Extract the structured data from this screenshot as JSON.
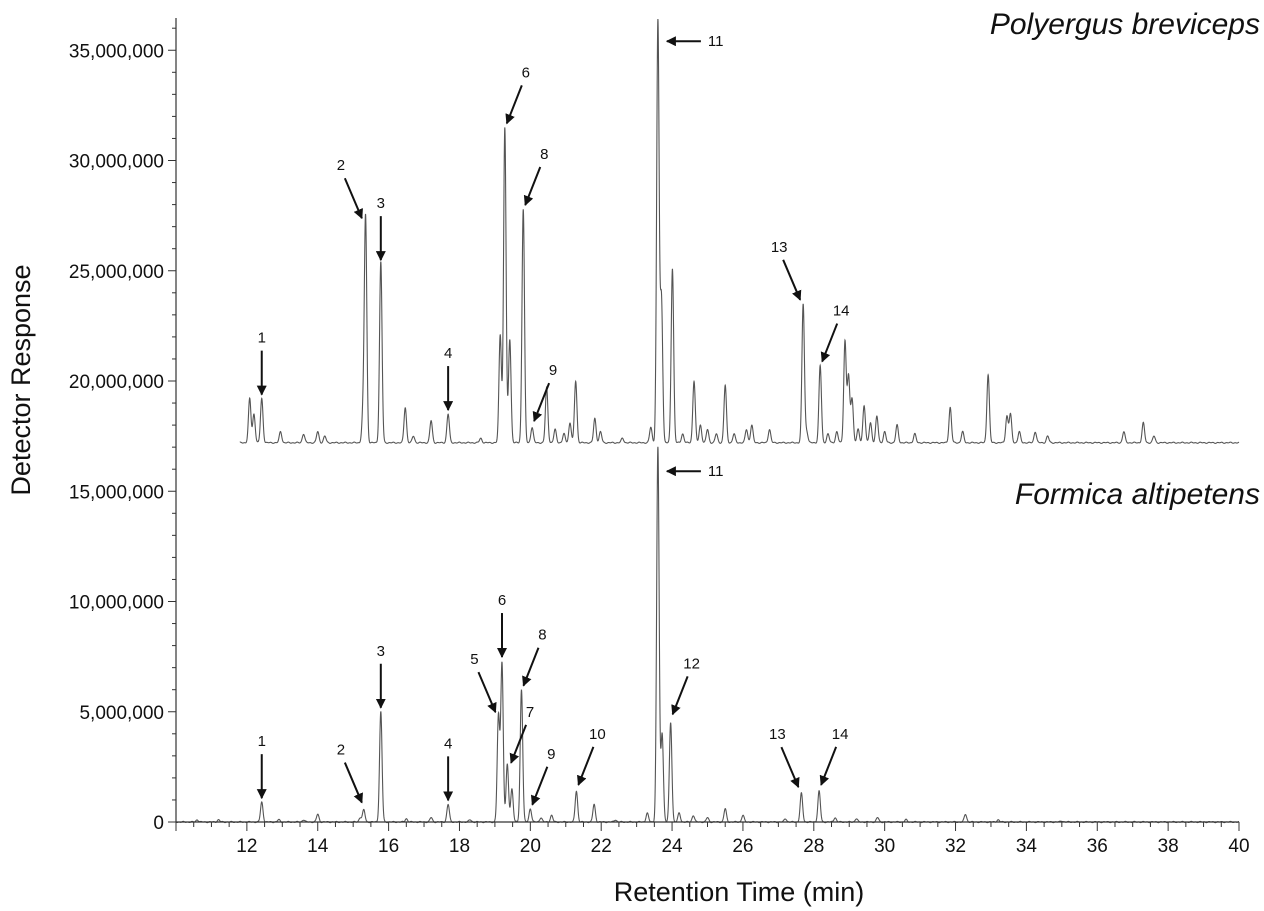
{
  "chart_data": {
    "type": "line",
    "xlabel": "Retention Time (min)",
    "ylabel": "Detector Response",
    "xlim": [
      10,
      40
    ],
    "ylim": [
      0,
      36500000
    ],
    "x_ticks": [
      "12",
      "14",
      "16",
      "18",
      "20",
      "22",
      "24",
      "26",
      "28",
      "30",
      "32",
      "34",
      "36",
      "38",
      "40"
    ],
    "y_ticks": [
      {
        "value": 0,
        "label": "0"
      },
      {
        "value": 5000000,
        "label": "5,000,000"
      },
      {
        "value": 10000000,
        "label": "10,000,000"
      },
      {
        "value": 15000000,
        "label": "15,000,000"
      },
      {
        "value": 20000000,
        "label": "20,000,000"
      },
      {
        "value": 25000000,
        "label": "25,000,000"
      },
      {
        "value": 30000000,
        "label": "30,000,000"
      },
      {
        "value": 35000000,
        "label": "35,000,000"
      }
    ],
    "series": [
      {
        "name": "Polyergus breviceps",
        "baseline": 17200000,
        "peaks": [
          [
            11.5,
            0.1
          ],
          [
            12.08,
            2.0
          ],
          [
            12.2,
            1.3
          ],
          [
            12.42,
            2.0
          ],
          [
            12.95,
            0.5
          ],
          [
            13.6,
            0.4
          ],
          [
            14.0,
            0.5
          ],
          [
            14.2,
            0.3
          ],
          [
            15.28,
            1.3
          ],
          [
            15.35,
            10.2
          ],
          [
            15.78,
            8.2
          ],
          [
            16.47,
            1.6
          ],
          [
            16.7,
            0.3
          ],
          [
            17.2,
            1.0
          ],
          [
            17.68,
            1.3
          ],
          [
            18.6,
            0.2
          ],
          [
            19.15,
            4.9
          ],
          [
            19.28,
            14.3
          ],
          [
            19.42,
            4.7
          ],
          [
            19.8,
            10.6
          ],
          [
            20.05,
            0.7
          ],
          [
            20.46,
            2.5
          ],
          [
            20.7,
            0.6
          ],
          [
            20.95,
            0.4
          ],
          [
            21.12,
            0.9
          ],
          [
            21.28,
            2.8
          ],
          [
            21.82,
            1.1
          ],
          [
            21.98,
            0.5
          ],
          [
            22.6,
            0.2
          ],
          [
            23.4,
            0.7
          ],
          [
            23.6,
            19.1
          ],
          [
            23.7,
            6.5
          ],
          [
            24.01,
            7.9
          ],
          [
            24.3,
            0.4
          ],
          [
            24.62,
            2.8
          ],
          [
            24.8,
            0.8
          ],
          [
            25.0,
            0.6
          ],
          [
            25.25,
            0.4
          ],
          [
            25.5,
            2.6
          ],
          [
            25.75,
            0.4
          ],
          [
            26.1,
            0.6
          ],
          [
            26.25,
            0.8
          ],
          [
            26.75,
            0.6
          ],
          [
            27.7,
            6.3
          ],
          [
            27.8,
            0.5
          ],
          [
            28.18,
            3.5
          ],
          [
            28.4,
            0.4
          ],
          [
            28.65,
            0.5
          ],
          [
            28.88,
            4.6
          ],
          [
            28.98,
            3.0
          ],
          [
            29.08,
            2.0
          ],
          [
            29.25,
            0.6
          ],
          [
            29.42,
            1.7
          ],
          [
            29.6,
            0.9
          ],
          [
            29.78,
            1.2
          ],
          [
            30.0,
            0.5
          ],
          [
            30.35,
            0.8
          ],
          [
            30.85,
            0.4
          ],
          [
            31.85,
            1.6
          ],
          [
            32.2,
            0.5
          ],
          [
            32.92,
            3.1
          ],
          [
            33.45,
            1.2
          ],
          [
            33.55,
            1.3
          ],
          [
            33.8,
            0.5
          ],
          [
            34.25,
            0.5
          ],
          [
            34.6,
            0.3
          ],
          [
            36.75,
            0.5
          ],
          [
            37.3,
            0.9
          ],
          [
            37.6,
            0.3
          ]
        ]
      },
      {
        "name": "Formica altipetens",
        "baseline": 0,
        "peaks": [
          [
            10.6,
            0.1
          ],
          [
            11.2,
            0.1
          ],
          [
            12.42,
            0.9
          ],
          [
            12.9,
            0.1
          ],
          [
            13.6,
            0.1
          ],
          [
            14.0,
            0.35
          ],
          [
            15.2,
            0.2
          ],
          [
            15.3,
            0.55
          ],
          [
            15.78,
            5.0
          ],
          [
            16.5,
            0.15
          ],
          [
            17.2,
            0.2
          ],
          [
            17.68,
            0.8
          ],
          [
            18.3,
            0.1
          ],
          [
            19.1,
            4.8
          ],
          [
            19.2,
            7.2
          ],
          [
            19.35,
            2.6
          ],
          [
            19.48,
            1.5
          ],
          [
            19.75,
            6.0
          ],
          [
            20.0,
            0.6
          ],
          [
            20.3,
            0.2
          ],
          [
            20.6,
            0.3
          ],
          [
            21.3,
            1.4
          ],
          [
            21.8,
            0.8
          ],
          [
            22.4,
            0.1
          ],
          [
            23.3,
            0.4
          ],
          [
            23.6,
            17.0
          ],
          [
            23.72,
            4.0
          ],
          [
            23.96,
            4.5
          ],
          [
            24.2,
            0.4
          ],
          [
            24.6,
            0.3
          ],
          [
            25.0,
            0.2
          ],
          [
            25.5,
            0.6
          ],
          [
            26.0,
            0.3
          ],
          [
            27.2,
            0.15
          ],
          [
            27.65,
            1.3
          ],
          [
            28.15,
            1.4
          ],
          [
            28.6,
            0.2
          ],
          [
            29.2,
            0.15
          ],
          [
            29.8,
            0.2
          ],
          [
            30.6,
            0.1
          ],
          [
            32.28,
            0.35
          ],
          [
            33.2,
            0.1
          ],
          [
            35.0,
            0.05
          ]
        ]
      }
    ],
    "annotations": [
      {
        "series": 0,
        "label": "1",
        "x": 12.42,
        "y": 19200000,
        "dir": "down"
      },
      {
        "series": 0,
        "label": "2",
        "x": 15.33,
        "y": 27200000,
        "dir": "diag-left"
      },
      {
        "series": 0,
        "label": "3",
        "x": 15.78,
        "y": 25300000,
        "dir": "down"
      },
      {
        "series": 0,
        "label": "4",
        "x": 17.68,
        "y": 18500000,
        "dir": "down"
      },
      {
        "series": 0,
        "label": "6",
        "x": 19.28,
        "y": 31500000,
        "dir": "diag-right"
      },
      {
        "series": 0,
        "label": "8",
        "x": 19.8,
        "y": 27800000,
        "dir": "diag-right"
      },
      {
        "series": 0,
        "label": "9",
        "x": 20.05,
        "y": 18000000,
        "dir": "diag-right"
      },
      {
        "series": 0,
        "label": "11",
        "x": 23.6,
        "y": 35500000,
        "dir": "left"
      },
      {
        "series": 0,
        "label": "13",
        "x": 27.7,
        "y": 23500000,
        "dir": "diag-left"
      },
      {
        "series": 0,
        "label": "14",
        "x": 28.18,
        "y": 20700000,
        "dir": "diag-right"
      },
      {
        "series": 1,
        "label": "1",
        "x": 12.42,
        "y": 900000,
        "dir": "down"
      },
      {
        "series": 1,
        "label": "2",
        "x": 15.33,
        "y": 700000,
        "dir": "diag-left"
      },
      {
        "series": 1,
        "label": "3",
        "x": 15.78,
        "y": 5000000,
        "dir": "down"
      },
      {
        "series": 1,
        "label": "4",
        "x": 17.68,
        "y": 800000,
        "dir": "down"
      },
      {
        "series": 1,
        "label": "5",
        "x": 19.1,
        "y": 4800000,
        "dir": "diag-left"
      },
      {
        "series": 1,
        "label": "6",
        "x": 19.2,
        "y": 7300000,
        "dir": "down"
      },
      {
        "series": 1,
        "label": "7",
        "x": 19.4,
        "y": 2500000,
        "dir": "diag-right"
      },
      {
        "series": 1,
        "label": "8",
        "x": 19.75,
        "y": 6000000,
        "dir": "diag-right"
      },
      {
        "series": 1,
        "label": "9",
        "x": 20.0,
        "y": 600000,
        "dir": "diag-right"
      },
      {
        "series": 1,
        "label": "10",
        "x": 21.3,
        "y": 1500000,
        "dir": "diag-right"
      },
      {
        "series": 1,
        "label": "11",
        "x": 23.6,
        "y": 16000000,
        "dir": "left"
      },
      {
        "series": 1,
        "label": "12",
        "x": 23.96,
        "y": 4700000,
        "dir": "diag-right"
      },
      {
        "series": 1,
        "label": "13",
        "x": 27.65,
        "y": 1400000,
        "dir": "diag-left"
      },
      {
        "series": 1,
        "label": "14",
        "x": 28.15,
        "y": 1500000,
        "dir": "diag-right"
      }
    ],
    "grid": false,
    "legend": "none"
  }
}
